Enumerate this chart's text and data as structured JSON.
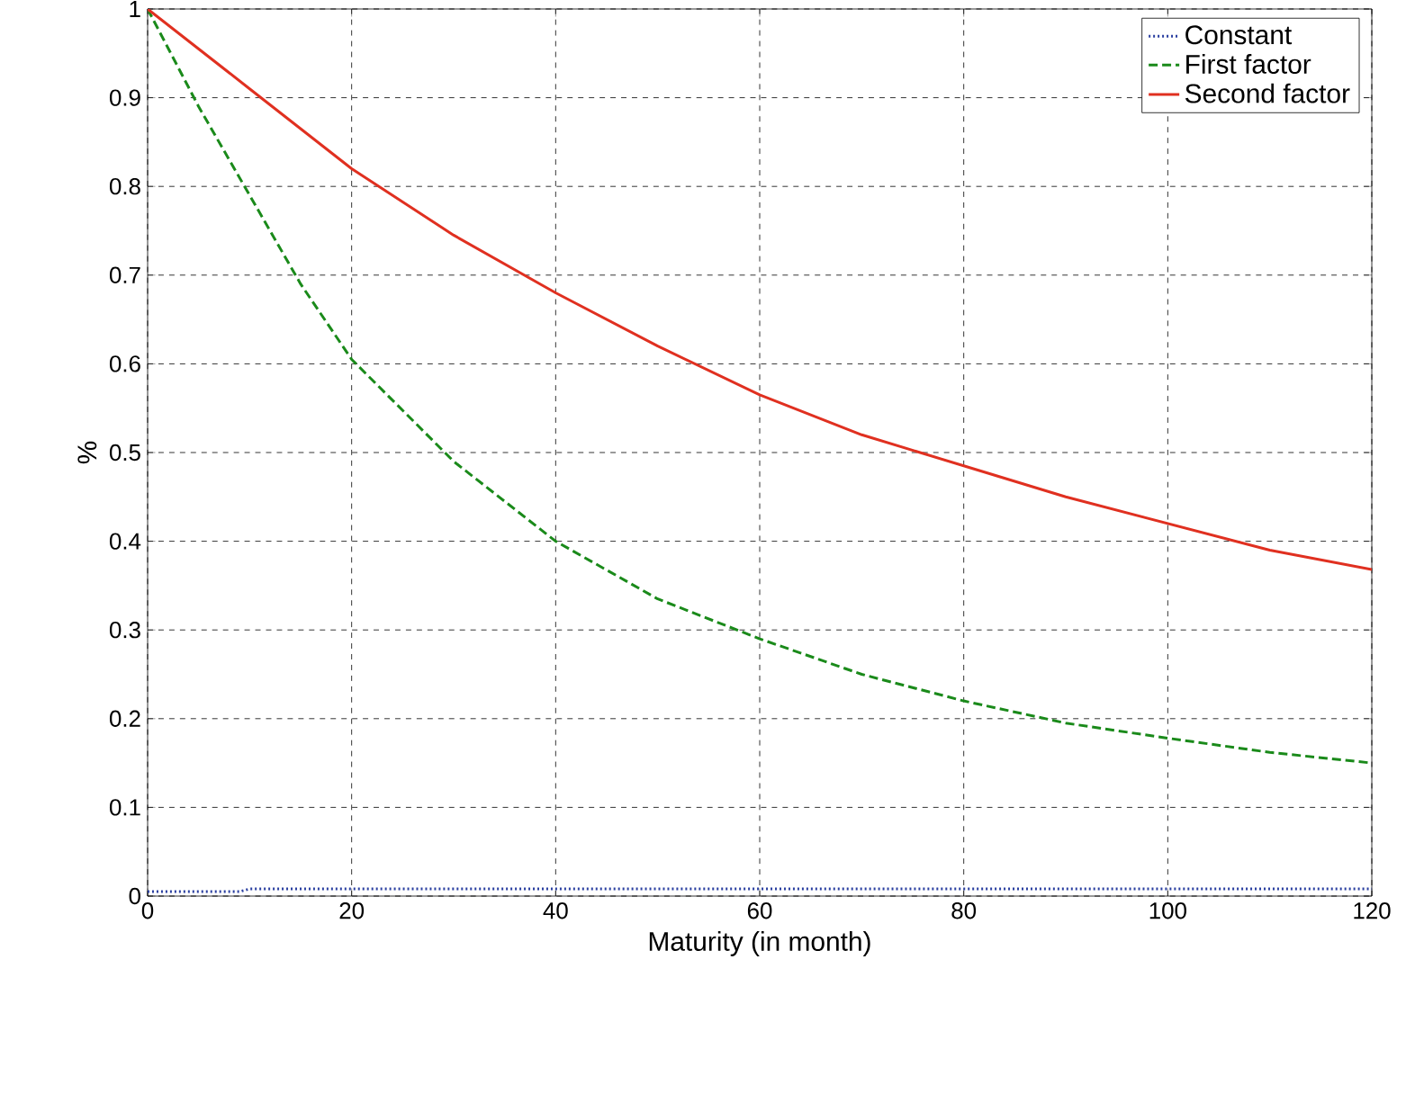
{
  "chart_data": {
    "type": "line",
    "xlabel": "Maturity (in month)",
    "ylabel": "%",
    "xlim": [
      0,
      120
    ],
    "ylim": [
      0,
      1
    ],
    "xticks": [
      0,
      20,
      40,
      60,
      80,
      100,
      120
    ],
    "yticks": [
      0,
      0.1,
      0.2,
      0.3,
      0.4,
      0.5,
      0.6,
      0.7,
      0.8,
      0.9,
      1
    ],
    "grid": true,
    "legend": "top right",
    "series": [
      {
        "name": "Constant",
        "color": "#2a3fa0",
        "line_style": "dotted",
        "x": [
          0,
          5,
          9,
          10,
          20,
          40,
          60,
          80,
          100,
          120
        ],
        "values": [
          0.005,
          0.005,
          0.005,
          0.008,
          0.008,
          0.008,
          0.008,
          0.008,
          0.008,
          0.008
        ]
      },
      {
        "name": "First factor",
        "color": "#1a8a1a",
        "line_style": "dashed",
        "x": [
          0,
          5,
          10,
          15,
          20,
          30,
          40,
          50,
          60,
          70,
          80,
          90,
          100,
          110,
          120
        ],
        "values": [
          1,
          0.89,
          0.79,
          0.69,
          0.605,
          0.49,
          0.4,
          0.335,
          0.29,
          0.25,
          0.22,
          0.195,
          0.178,
          0.162,
          0.15
        ]
      },
      {
        "name": "Second factor",
        "color": "#e03020",
        "line_style": "solid",
        "x": [
          0,
          10,
          20,
          30,
          40,
          50,
          60,
          70,
          80,
          90,
          100,
          110,
          120
        ],
        "values": [
          1,
          0.91,
          0.82,
          0.745,
          0.68,
          0.62,
          0.565,
          0.52,
          0.485,
          0.45,
          0.42,
          0.39,
          0.368
        ]
      }
    ]
  }
}
